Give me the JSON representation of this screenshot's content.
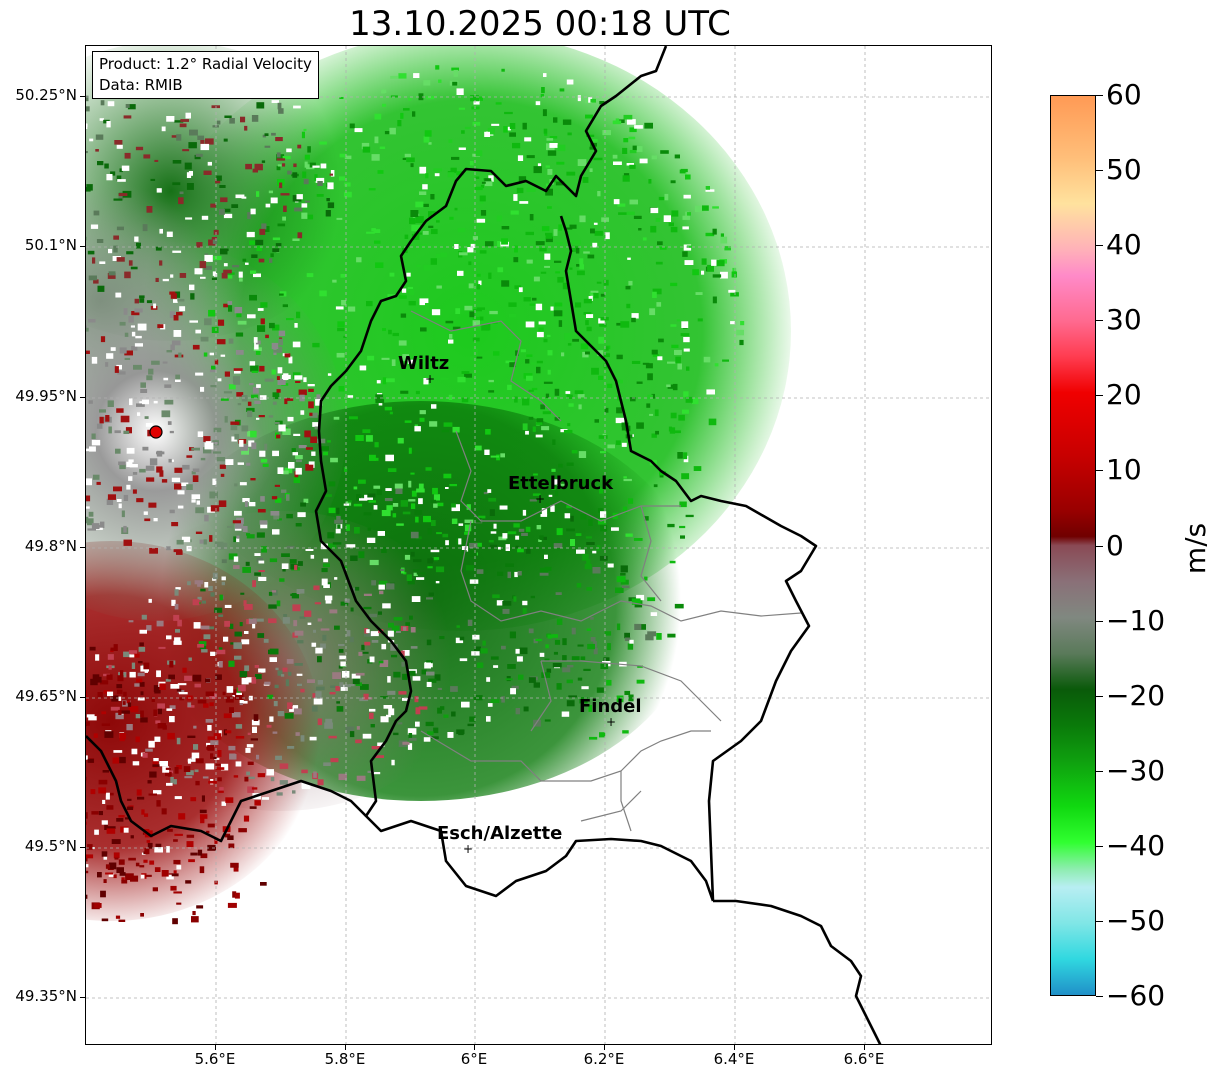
{
  "title": "13.10.2025 00:18 UTC",
  "info": {
    "product": "Product: 1.2° Radial Velocity",
    "data": "Data: RMIB"
  },
  "y_ticks": [
    "50.25°N",
    "50.1°N",
    "49.95°N",
    "49.8°N",
    "49.65°N",
    "49.5°N",
    "49.35°N"
  ],
  "x_ticks": [
    "5.6°E",
    "5.8°E",
    "6°E",
    "6.2°E",
    "6.4°E",
    "6.6°E"
  ],
  "cities": [
    {
      "name": "Wiltz",
      "lon": 5.93,
      "lat": 49.966
    },
    {
      "name": "Ettelbruck",
      "lon": 6.1,
      "lat": 49.847
    },
    {
      "name": "Findel",
      "lon": 6.21,
      "lat": 49.626
    },
    {
      "name": "Esch/Alzette",
      "lon": 5.99,
      "lat": 49.498
    }
  ],
  "radar": {
    "lon": 5.505,
    "lat": 49.914
  },
  "colorbar": {
    "label": "m/s",
    "ticks": [
      "60",
      "50",
      "40",
      "30",
      "20",
      "10",
      "0",
      "−10",
      "−20",
      "−30",
      "−40",
      "−50",
      "−60"
    ],
    "min": -60,
    "max": 60
  },
  "colors": {
    "border": "#000000",
    "admin_border": "#808080",
    "radar_site": "#e00000",
    "grid": "#b0b0b0"
  }
}
